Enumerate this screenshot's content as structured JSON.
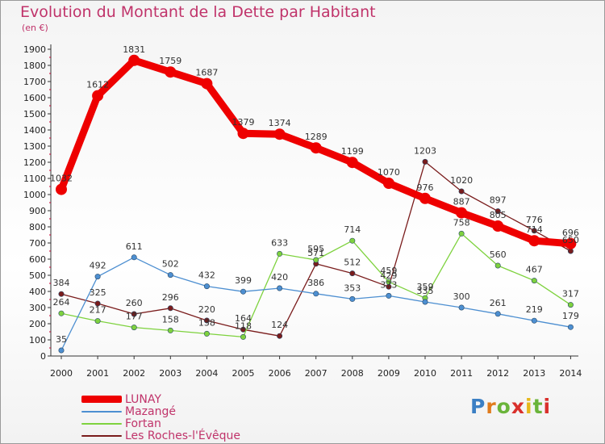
{
  "title": "Evolution du Montant de la Dette par Habitant",
  "unit_label": "(en €)",
  "logo": {
    "text": "Proxiti"
  },
  "chart_data": {
    "type": "line",
    "title": "Evolution du Montant de la Dette par Habitant",
    "ylabel": "(en €)",
    "xlabel": "",
    "ylim": [
      0,
      1900
    ],
    "ytick_step": 100,
    "grid": false,
    "legend_position": "bottom-left",
    "categories": [
      "2000",
      "2001",
      "2002",
      "2003",
      "2004",
      "2005",
      "2006",
      "2007",
      "2008",
      "2009",
      "2010",
      "2011",
      "2012",
      "2013",
      "2014"
    ],
    "series": [
      {
        "name": "LUNAY",
        "color": "#ee0000",
        "emphasis": true,
        "values": [
          1032,
          1612,
          1831,
          1759,
          1687,
          1379,
          1374,
          1289,
          1199,
          1070,
          976,
          887,
          805,
          714,
          696
        ],
        "labels": [
          "1032",
          "1612",
          "1831",
          "1759",
          "1687",
          "1379",
          "1374",
          "1289",
          "1199",
          "1070",
          "976",
          "887",
          "805",
          "714",
          "696"
        ]
      },
      {
        "name": "Mazangé",
        "color": "#4d8fd1",
        "values": [
          35,
          492,
          611,
          502,
          432,
          399,
          420,
          386,
          353,
          373,
          335,
          300,
          261,
          219,
          179
        ],
        "labels": [
          "35",
          "492",
          "611",
          "502",
          "432",
          "399",
          "420",
          "386",
          "353",
          "373",
          "335",
          "300",
          "261",
          "219",
          "179"
        ]
      },
      {
        "name": "Fortan",
        "color": "#7ed23e",
        "values": [
          264,
          217,
          177,
          158,
          138,
          118,
          633,
          595,
          714,
          459,
          359,
          758,
          560,
          467,
          317
        ],
        "labels": [
          "264",
          "217",
          "177",
          "158",
          "138",
          "118",
          "633",
          "595",
          "714",
          "459",
          "359",
          "758",
          "560",
          "467",
          "317"
        ]
      },
      {
        "name": "Les Roches-l'Évêque",
        "color": "#7a1c1c",
        "values": [
          384,
          325,
          260,
          296,
          220,
          164,
          124,
          571,
          512,
          429,
          1203,
          1020,
          897,
          776,
          650
        ],
        "labels": [
          "384",
          "325",
          "260",
          "296",
          "220",
          "164",
          "124",
          "571",
          "512",
          "429",
          "1203",
          "1020",
          "897",
          "776",
          "650"
        ]
      }
    ]
  }
}
